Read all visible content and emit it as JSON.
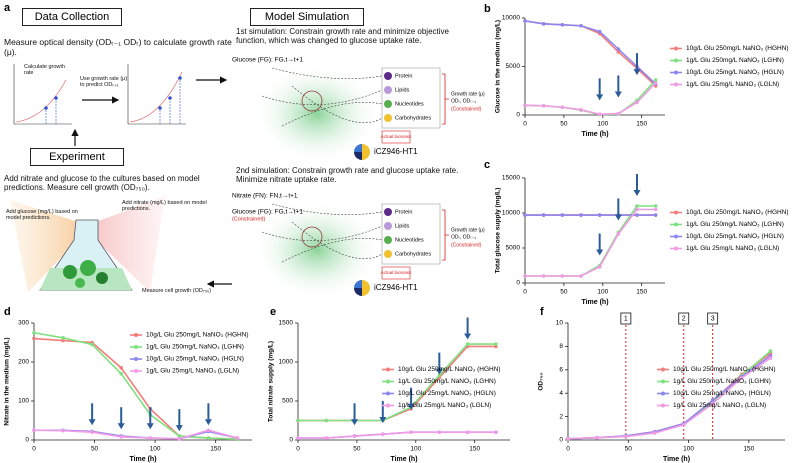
{
  "diagram": {
    "panel": "a",
    "data_collection": {
      "title": "Data Collection",
      "text": "Measure optical density (ODₜ₋₁ ODₜ) to calculate growth rate (μ).",
      "plot_label": "Calculate growth rate",
      "arrow_label": "Use growth rate (μ) to predict ODₜ₊₁"
    },
    "experiment": {
      "title": "Experiment",
      "text": "Add nitrate and glucose to the cultures based on model predictions.  Measure cell growth (OD₇₅₀).",
      "glucose_note": "Add glucose (mg/L) based on model predictions.",
      "nitrate_note": "Add nitrate (mg/L) based on model predictions.",
      "od_note": "Measure cell growth (OD₇₅₀)"
    },
    "model_simulation": {
      "title": "Model Simulation",
      "simulations": [
        {
          "text": "1st simulation: Constrain growth rate and minimize objective function, which was changed to glucose uptake rate.",
          "inputs": [
            "Glucose (FG): FG,t→t+1"
          ],
          "components": [
            "Protein",
            "Lipids",
            "Nucleotides",
            "Carbohydrates"
          ],
          "growth": [
            "Growth rate (μ)",
            "ODₜ, ODₜ₋₁"
          ],
          "constrained": "(Constrained)",
          "biomass": "Actual biomass",
          "model": "iCZ946-HT1"
        },
        {
          "text": "2nd simulation: Constrain growth rate and glucose uptake rate. Minimize nitrate uptake rate.",
          "inputs": [
            "Nitrate (FN): FN,t→t+1",
            "Glucose (FG): FG,t→t+1"
          ],
          "input_note": "(Constrained)",
          "components": [
            "Protein",
            "Lipids",
            "Nucleotides",
            "Carbohydrates"
          ],
          "growth": [
            "Growth rate (μ)",
            "ODₜ, ODₜ₋₁"
          ],
          "constrained": "(Constrained)",
          "biomass": "Actual biomass",
          "model": "iCZ946-HT1"
        }
      ]
    }
  },
  "chart_data": [
    {
      "type": "line",
      "panel": "b",
      "ylabel": "Glucose in the medium (mg/L)",
      "xlabel": "Time (h)",
      "x": [
        0,
        24,
        48,
        72,
        96,
        120,
        144,
        168
      ],
      "xlim": [
        0,
        180
      ],
      "xticks": [
        0,
        50,
        100,
        150
      ],
      "ylim": [
        0,
        10000
      ],
      "yticks": [
        0,
        5000,
        10000
      ],
      "legend": "right",
      "series": [
        {
          "name": "10g/L Glu 250mg/L NaNO₃ (HGHN)",
          "color": "#f47c7c",
          "values": [
            9700,
            9400,
            9300,
            9200,
            8400,
            6500,
            4800,
            3000
          ]
        },
        {
          "name": "1g/L Glu 250mg/L NaNO₃ (LGHN)",
          "color": "#7fe07f",
          "values": [
            1000,
            950,
            800,
            500,
            50,
            100,
            1500,
            3600
          ]
        },
        {
          "name": "10g/L Glu 25mg/L NaNO₃ (HGLN)",
          "color": "#8e86ee",
          "values": [
            9700,
            9400,
            9300,
            9200,
            8600,
            6800,
            5000,
            3200
          ]
        },
        {
          "name": "1g/L Glu 25mg/L NaNO₃ (LGLN)",
          "color": "#f29ae6",
          "values": [
            1000,
            950,
            800,
            550,
            80,
            150,
            1300,
            3300
          ]
        }
      ],
      "arrows": [
        {
          "x": 96,
          "y": 1200
        },
        {
          "x": 120,
          "y": 1500
        },
        {
          "x": 144,
          "y": 3800
        }
      ]
    },
    {
      "type": "line",
      "panel": "c",
      "ylabel": "Total glucose supply (mg/L)",
      "xlabel": "Time (h)",
      "x": [
        0,
        24,
        48,
        72,
        96,
        120,
        144,
        168
      ],
      "xlim": [
        0,
        180
      ],
      "xticks": [
        0,
        50,
        100,
        150
      ],
      "ylim": [
        0,
        15000
      ],
      "yticks": [
        0,
        5000,
        10000,
        15000
      ],
      "legend": "right",
      "series": [
        {
          "name": "10g/L Glu 250mg/L NaNO₃ (HGHN)",
          "color": "#f47c7c",
          "values": [
            9700,
            9700,
            9700,
            9700,
            9700,
            9700,
            9700,
            9700
          ]
        },
        {
          "name": "1g/L Glu 250mg/L NaNO₃ (LGHN)",
          "color": "#7fe07f",
          "values": [
            1000,
            1000,
            1000,
            1000,
            2500,
            7200,
            11000,
            11000
          ]
        },
        {
          "name": "10g/L Glu 25mg/L NaNO₃ (HGLN)",
          "color": "#8e86ee",
          "values": [
            9700,
            9700,
            9700,
            9700,
            9700,
            9700,
            9700,
            9700
          ]
        },
        {
          "name": "1g/L Glu 25mg/L NaNO₃ (LGLN)",
          "color": "#f29ae6",
          "values": [
            1000,
            1000,
            1000,
            1000,
            2300,
            7000,
            10500,
            10500
          ]
        }
      ],
      "arrows": [
        {
          "x": 96,
          "y": 3500
        },
        {
          "x": 120,
          "y": 8500
        },
        {
          "x": 144,
          "y": 12000
        }
      ]
    },
    {
      "type": "line",
      "panel": "d",
      "ylabel": "Nitrate in the medium (mg/L)",
      "xlabel": "Time (h)",
      "x": [
        0,
        24,
        48,
        72,
        96,
        120,
        144,
        168
      ],
      "xlim": [
        0,
        180
      ],
      "xticks": [
        0,
        50,
        100,
        150
      ],
      "ylim": [
        0,
        300
      ],
      "yticks": [
        0,
        100,
        200,
        300
      ],
      "legend": "upper right",
      "series": [
        {
          "name": "10g/L Glu 250mg/L NaNO₃ (HGHN)",
          "color": "#f47c7c",
          "values": [
            260,
            255,
            250,
            185,
            80,
            10,
            5,
            2
          ]
        },
        {
          "name": "1g/L Glu 250mg/L NaNO₃ (LGHN)",
          "color": "#7fe07f",
          "values": [
            275,
            262,
            245,
            170,
            65,
            10,
            5,
            2
          ]
        },
        {
          "name": "10g/L Glu 25mg/L NaNO₃ (HGLN)",
          "color": "#8e86ee",
          "values": [
            25,
            25,
            22,
            10,
            5,
            3,
            22,
            5
          ]
        },
        {
          "name": "1g/L Glu 25mg/L NaNO₃ (LGLN)",
          "color": "#f29ae6",
          "values": [
            25,
            24,
            20,
            8,
            5,
            3,
            25,
            5
          ]
        }
      ],
      "arrows": [
        {
          "x": 48,
          "y": 30
        },
        {
          "x": 72,
          "y": 20
        },
        {
          "x": 96,
          "y": 20
        },
        {
          "x": 120,
          "y": 15
        },
        {
          "x": 144,
          "y": 30
        }
      ]
    },
    {
      "type": "line",
      "panel": "e",
      "ylabel": "Total nitrate supply (mg/L)",
      "xlabel": "Time (h)",
      "x": [
        0,
        24,
        48,
        72,
        96,
        120,
        144,
        168
      ],
      "xlim": [
        0,
        180
      ],
      "xticks": [
        0,
        50,
        100,
        150
      ],
      "ylim": [
        0,
        1500
      ],
      "yticks": [
        0,
        500,
        1000,
        1500
      ],
      "legend": "center right",
      "series": [
        {
          "name": "10g/L Glu 250mg/L NaNO₃ (HGHN)",
          "color": "#f47c7c",
          "values": [
            250,
            250,
            250,
            250,
            400,
            800,
            1200,
            1200
          ]
        },
        {
          "name": "1g/L Glu 250mg/L NaNO₃ (LGHN)",
          "color": "#7fe07f",
          "values": [
            250,
            250,
            250,
            250,
            420,
            830,
            1230,
            1230
          ]
        },
        {
          "name": "10g/L Glu 25mg/L NaNO₃ (HGLN)",
          "color": "#8e86ee",
          "values": [
            25,
            25,
            50,
            75,
            100,
            100,
            100,
            100
          ]
        },
        {
          "name": "1g/L Glu 25mg/L NaNO₃ (LGLN)",
          "color": "#f29ae6",
          "values": [
            25,
            25,
            50,
            75,
            100,
            100,
            100,
            100
          ]
        }
      ],
      "arrows": [
        {
          "x": 48,
          "y": 150
        },
        {
          "x": 72,
          "y": 180
        },
        {
          "x": 96,
          "y": 350
        },
        {
          "x": 120,
          "y": 800
        },
        {
          "x": 144,
          "y": 1250
        }
      ]
    },
    {
      "type": "line",
      "panel": "f",
      "ylabel": "OD₇₅₀",
      "xlabel": "Time (h)",
      "x": [
        0,
        24,
        48,
        72,
        96,
        120,
        144,
        168
      ],
      "xlim": [
        0,
        180
      ],
      "xticks": [
        0,
        50,
        100,
        150
      ],
      "ylim": [
        0,
        10
      ],
      "yticks": [
        0,
        2,
        4,
        6,
        8,
        10
      ],
      "legend": "center right",
      "series": [
        {
          "name": "10g/L Glu 250mg/L NaNO₃ (HGHN)",
          "color": "#f47c7c",
          "values": [
            0.1,
            0.2,
            0.35,
            0.7,
            1.4,
            3.3,
            5.6,
            7.4
          ]
        },
        {
          "name": "1g/L Glu 250mg/L NaNO₃ (LGHN)",
          "color": "#7fe07f",
          "values": [
            0.1,
            0.2,
            0.3,
            0.65,
            1.3,
            3.2,
            5.5,
            7.6
          ]
        },
        {
          "name": "10g/L Glu 25mg/L NaNO₃ (HGLN)",
          "color": "#8e86ee",
          "values": [
            0.1,
            0.2,
            0.35,
            0.7,
            1.4,
            3.4,
            5.4,
            7.2
          ]
        },
        {
          "name": "1g/L Glu 25mg/L NaNO₃ (LGLN)",
          "color": "#f29ae6",
          "values": [
            0.1,
            0.2,
            0.3,
            0.6,
            1.3,
            3.1,
            5.3,
            7.0
          ]
        }
      ],
      "markers": [
        {
          "x": 48,
          "label": "1"
        },
        {
          "x": 96,
          "label": "2"
        },
        {
          "x": 120,
          "label": "3"
        }
      ]
    }
  ]
}
